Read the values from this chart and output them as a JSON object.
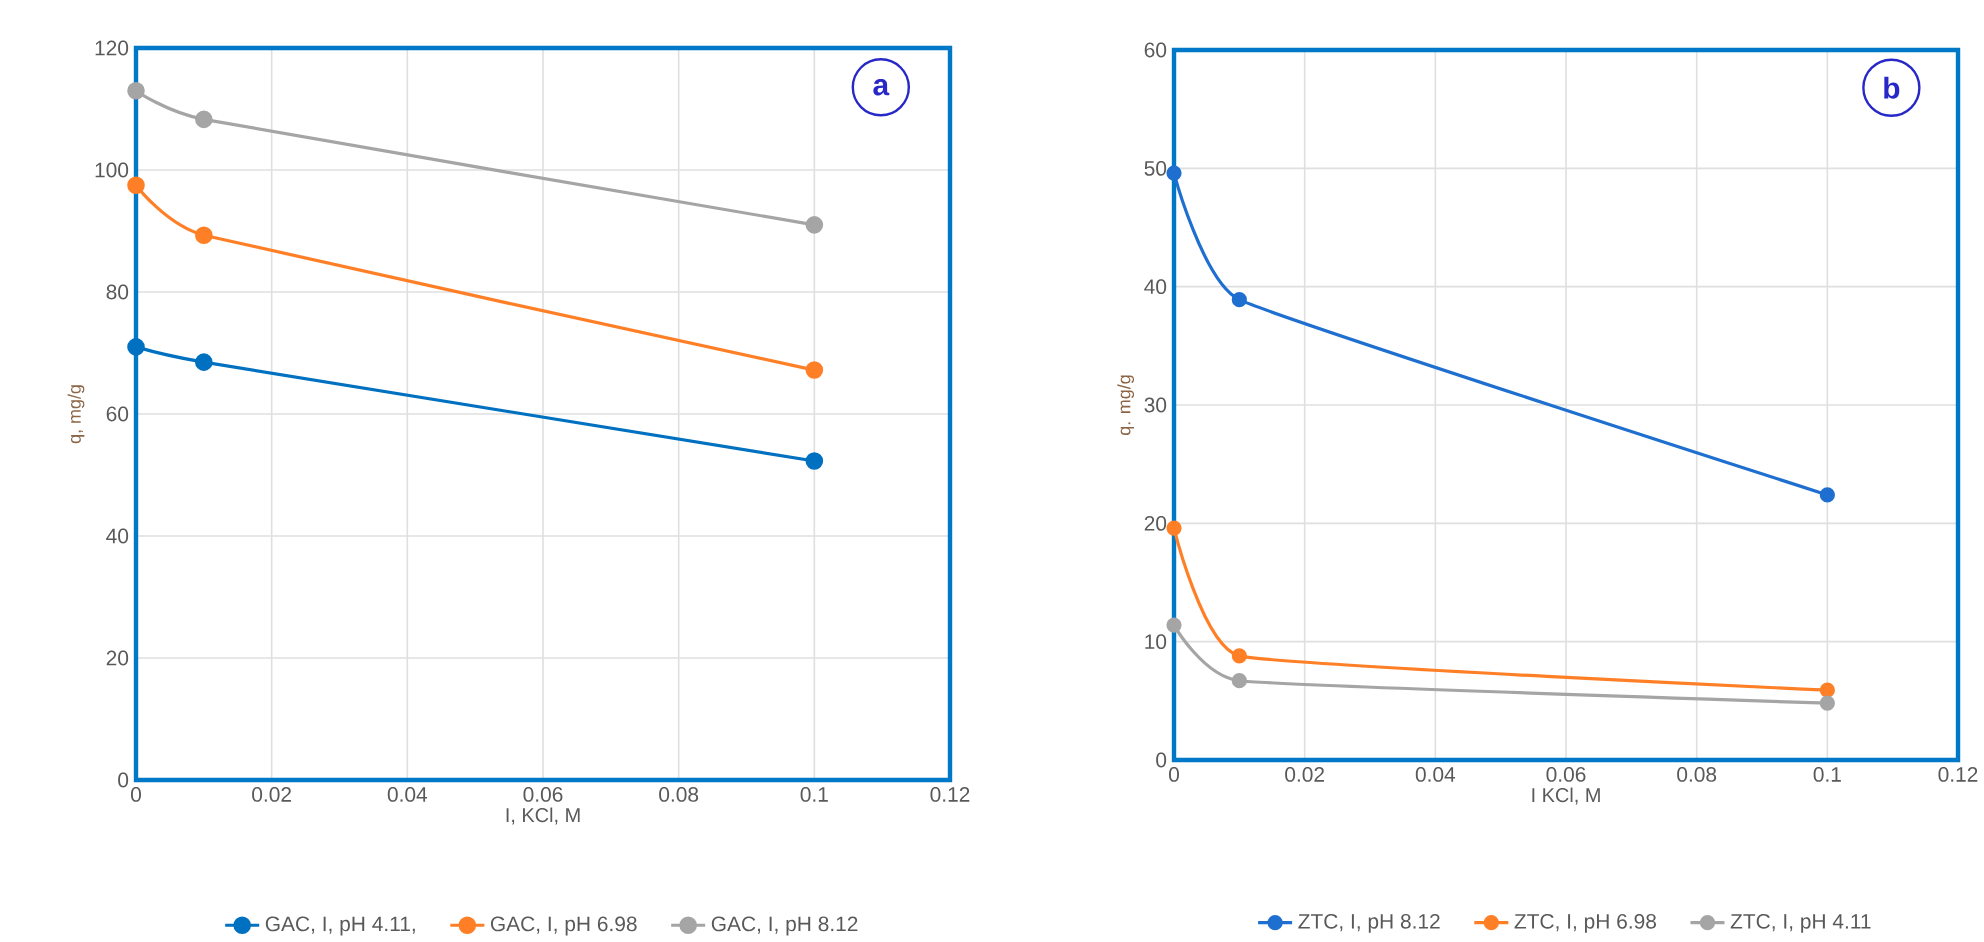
{
  "chart_data": [
    {
      "type": "line",
      "title": "a",
      "xlabel": "I, KCl, M",
      "ylabel": "q, mg/g",
      "x": [
        0,
        0.01,
        0.1
      ],
      "xlim": [
        0,
        0.12
      ],
      "ylim": [
        0,
        120
      ],
      "xticks": [
        0,
        0.02,
        0.04,
        0.06,
        0.08,
        0.1,
        0.12
      ],
      "yticks": [
        0,
        20,
        40,
        60,
        80,
        100,
        120
      ],
      "grid": true,
      "legend": "bottom",
      "marker": "circle",
      "line_style": "solid",
      "series": [
        {
          "name": "GAC, I, pH 4.11,",
          "color": "#0070c0",
          "values": [
            71,
            68.5,
            52.3
          ]
        },
        {
          "name": "GAC, I, pH 6.98",
          "color": "#ff7f27",
          "values": [
            97.5,
            89.3,
            67.2
          ]
        },
        {
          "name": "GAC, I, pH 8.12",
          "color": "#a5a5a5",
          "values": [
            113,
            108.3,
            91
          ]
        }
      ]
    },
    {
      "type": "line",
      "title": "b",
      "xlabel": "I KCl,  M",
      "ylabel": "q. mg/g",
      "x": [
        0,
        0.01,
        0.1
      ],
      "xlim": [
        0,
        0.12
      ],
      "ylim": [
        0,
        60
      ],
      "xticks": [
        0,
        0.02,
        0.04,
        0.06,
        0.08,
        0.1,
        0.12
      ],
      "yticks": [
        0,
        10,
        20,
        30,
        40,
        50,
        60
      ],
      "grid": true,
      "legend": "bottom",
      "marker": "circle",
      "line_style": "solid",
      "series": [
        {
          "name": "ZTC, I, pH 8.12",
          "color": "#1f6fd0",
          "values": [
            49.6,
            38.9,
            22.4
          ]
        },
        {
          "name": "ZTC, I, pH 6.98",
          "color": "#ff7f27",
          "values": [
            19.6,
            8.8,
            5.9
          ]
        },
        {
          "name": "ZTC, I, pH 4.11",
          "color": "#a5a5a5",
          "values": [
            11.4,
            6.7,
            4.8
          ]
        }
      ]
    }
  ]
}
